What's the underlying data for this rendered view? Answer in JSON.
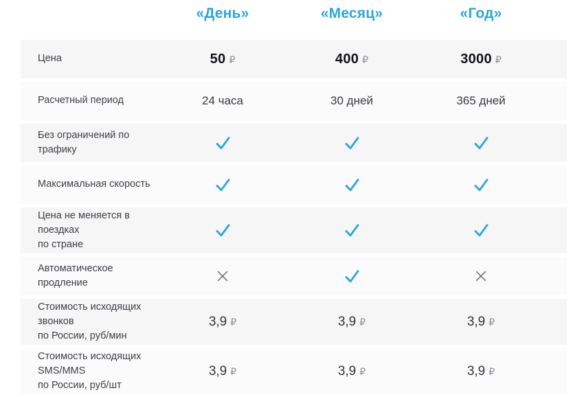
{
  "colors": {
    "accent_blue": "#2aa6dc",
    "cross_gray": "#74727a",
    "row_bg_odd": "#f6f6f7",
    "row_bg_even": "#fbfbfc",
    "label_text": "#3e3d44",
    "price_text": "#141119",
    "ruble_text": "#8f8e95"
  },
  "currency_symbol": "₽",
  "icons": {
    "check": "check-icon",
    "cross": "cross-icon"
  },
  "header": {
    "columns": [
      "«День»",
      "«Месяц»",
      "«Год»"
    ]
  },
  "table": {
    "rows": [
      {
        "label_lines": [
          "Цена"
        ],
        "tall": false,
        "cells": [
          {
            "type": "price",
            "value": "50",
            "currency": "₽"
          },
          {
            "type": "price",
            "value": "400",
            "currency": "₽"
          },
          {
            "type": "price",
            "value": "3000",
            "currency": "₽"
          }
        ]
      },
      {
        "label_lines": [
          "Расчетный период"
        ],
        "tall": false,
        "cells": [
          {
            "type": "text",
            "value": "24 часа"
          },
          {
            "type": "text",
            "value": "30 дней"
          },
          {
            "type": "text",
            "value": "365 дней"
          }
        ]
      },
      {
        "label_lines": [
          "Без ограничений по трафику"
        ],
        "tall": false,
        "cells": [
          {
            "type": "check"
          },
          {
            "type": "check"
          },
          {
            "type": "check"
          }
        ]
      },
      {
        "label_lines": [
          "Максимальная скорость"
        ],
        "tall": false,
        "cells": [
          {
            "type": "check"
          },
          {
            "type": "check"
          },
          {
            "type": "check"
          }
        ]
      },
      {
        "label_lines": [
          "Цена не меняется в поездках",
          "по стране"
        ],
        "tall": true,
        "cells": [
          {
            "type": "check"
          },
          {
            "type": "check"
          },
          {
            "type": "check"
          }
        ]
      },
      {
        "label_lines": [
          "Автоматическое продление"
        ],
        "tall": false,
        "cells": [
          {
            "type": "cross"
          },
          {
            "type": "check"
          },
          {
            "type": "cross"
          }
        ]
      },
      {
        "label_lines": [
          "Стоимость исходящих звонков",
          "по России, руб/мин"
        ],
        "tall": true,
        "cells": [
          {
            "type": "amount",
            "value": "3,9",
            "currency": "₽"
          },
          {
            "type": "amount",
            "value": "3,9",
            "currency": "₽"
          },
          {
            "type": "amount",
            "value": "3,9",
            "currency": "₽"
          }
        ]
      },
      {
        "label_lines": [
          "Стоимость исходящих SMS/MMS",
          "по России, руб/шт"
        ],
        "tall": true,
        "cells": [
          {
            "type": "amount",
            "value": "3,9",
            "currency": "₽"
          },
          {
            "type": "amount",
            "value": "3,9",
            "currency": "₽"
          },
          {
            "type": "amount",
            "value": "3,9",
            "currency": "₽"
          }
        ]
      }
    ]
  }
}
